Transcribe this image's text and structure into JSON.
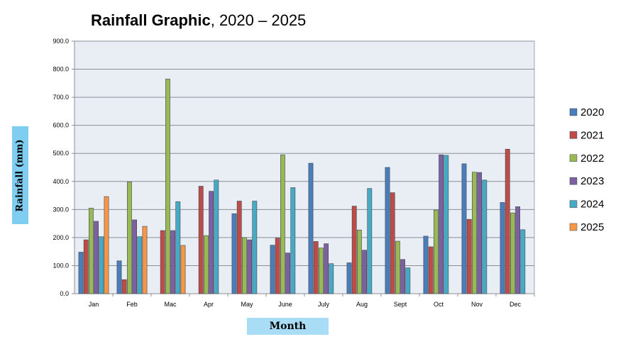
{
  "chart_data": {
    "type": "bar",
    "title_bold": "Rainfall Graphic",
    "title_rest": ", 2020 – 2025",
    "xlabel": "Month",
    "ylabel": "Rainfall  (mm)",
    "ylim": [
      0,
      900
    ],
    "yticks": [
      "0.0",
      "100.0",
      "200.0",
      "300.0",
      "400.0",
      "500.0",
      "600.0",
      "700.0",
      "800.0",
      "900.0"
    ],
    "grid": true,
    "legend_position": "right",
    "categories": [
      "Jan",
      "Feb",
      "Mac",
      "Apr",
      "May",
      "June",
      "July",
      "Aug",
      "Sept",
      "Oct",
      "Nov",
      "Dec"
    ],
    "series": [
      {
        "name": "2020",
        "color": "#4a7ebb",
        "values": [
          148,
          117,
          null,
          null,
          285,
          173,
          465,
          110,
          450,
          205,
          463,
          325
        ]
      },
      {
        "name": "2021",
        "color": "#be4b48",
        "values": [
          192,
          50,
          225,
          383,
          330,
          198,
          186,
          312,
          360,
          167,
          265,
          515
        ]
      },
      {
        "name": "2022",
        "color": "#98b954",
        "values": [
          305,
          398,
          765,
          207,
          200,
          495,
          163,
          227,
          187,
          298,
          433,
          288
        ]
      },
      {
        "name": "2023",
        "color": "#7d60a0",
        "values": [
          258,
          263,
          225,
          365,
          192,
          145,
          178,
          155,
          122,
          495,
          432,
          310
        ]
      },
      {
        "name": "2024",
        "color": "#46aac5",
        "values": [
          203,
          203,
          328,
          405,
          330,
          378,
          107,
          375,
          92,
          493,
          405,
          228
        ]
      },
      {
        "name": "2025",
        "color": "#f79646",
        "values": [
          346,
          240,
          172,
          null,
          null,
          null,
          null,
          null,
          null,
          null,
          null,
          null
        ]
      }
    ]
  }
}
